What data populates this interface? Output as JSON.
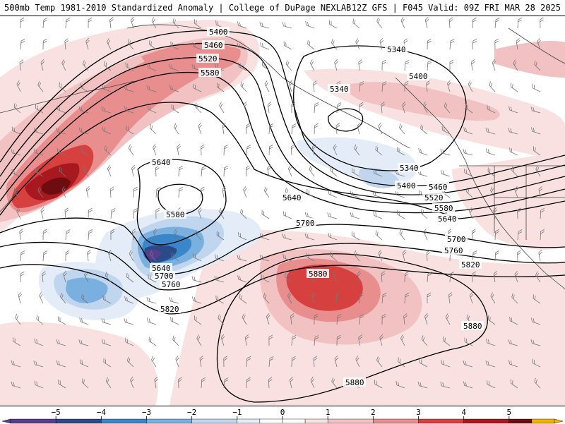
{
  "header": {
    "title_left": "500mb Temp 1981-2010 Standardized Anomaly | College of DuPage NEXLAB",
    "title_right": "12Z GFS | F045 Valid: 09Z FRI MAR 28 2025"
  },
  "colors": {
    "m5": "#5a3d8f",
    "m4": "#2c4a87",
    "m3": "#3a86c9",
    "m2": "#79b0df",
    "m1": "#bfd6ee",
    "m05": "#e3ecf7",
    "p05": "#f9e1e2",
    "p1": "#f2c2c3",
    "p2": "#e88e8f",
    "p3": "#d6403f",
    "p4": "#a8181f",
    "p5": "#6d0d12",
    "p6": "#f0b400",
    "contour": "#000000",
    "coast": "#444444"
  },
  "colorbar": {
    "tick_labels": [
      "−5",
      "−4",
      "−3",
      "−2",
      "−1",
      "0",
      "1",
      "2",
      "3",
      "4",
      "5"
    ],
    "tick_values": [
      -5,
      -4,
      -3,
      -2,
      -1,
      0,
      1,
      2,
      3,
      4,
      5
    ],
    "range": [
      -6,
      6
    ]
  },
  "contour_labels": {
    "l5400a": "5400",
    "l5460a": "5460",
    "l5520a": "5520",
    "l5580a": "5580",
    "l5340a": "5340",
    "l5400b": "5400",
    "l5340b": "5340",
    "l5340c": "5340",
    "l5400c": "5400",
    "l5460b": "5460",
    "l5520b": "5520",
    "l5580b": "5580",
    "l5640a": "5640",
    "l5640b": "5640",
    "l5580c": "5580",
    "l5640c": "5640",
    "l5700a": "5700",
    "l5760a": "5760",
    "l5820a": "5820",
    "l5700b": "5700",
    "l5640d": "5640",
    "l5700c": "5700",
    "l5760b": "5760",
    "l5820b": "5820",
    "l5880a": "5880",
    "l5880b": "5880",
    "l5880c": "5880"
  }
}
